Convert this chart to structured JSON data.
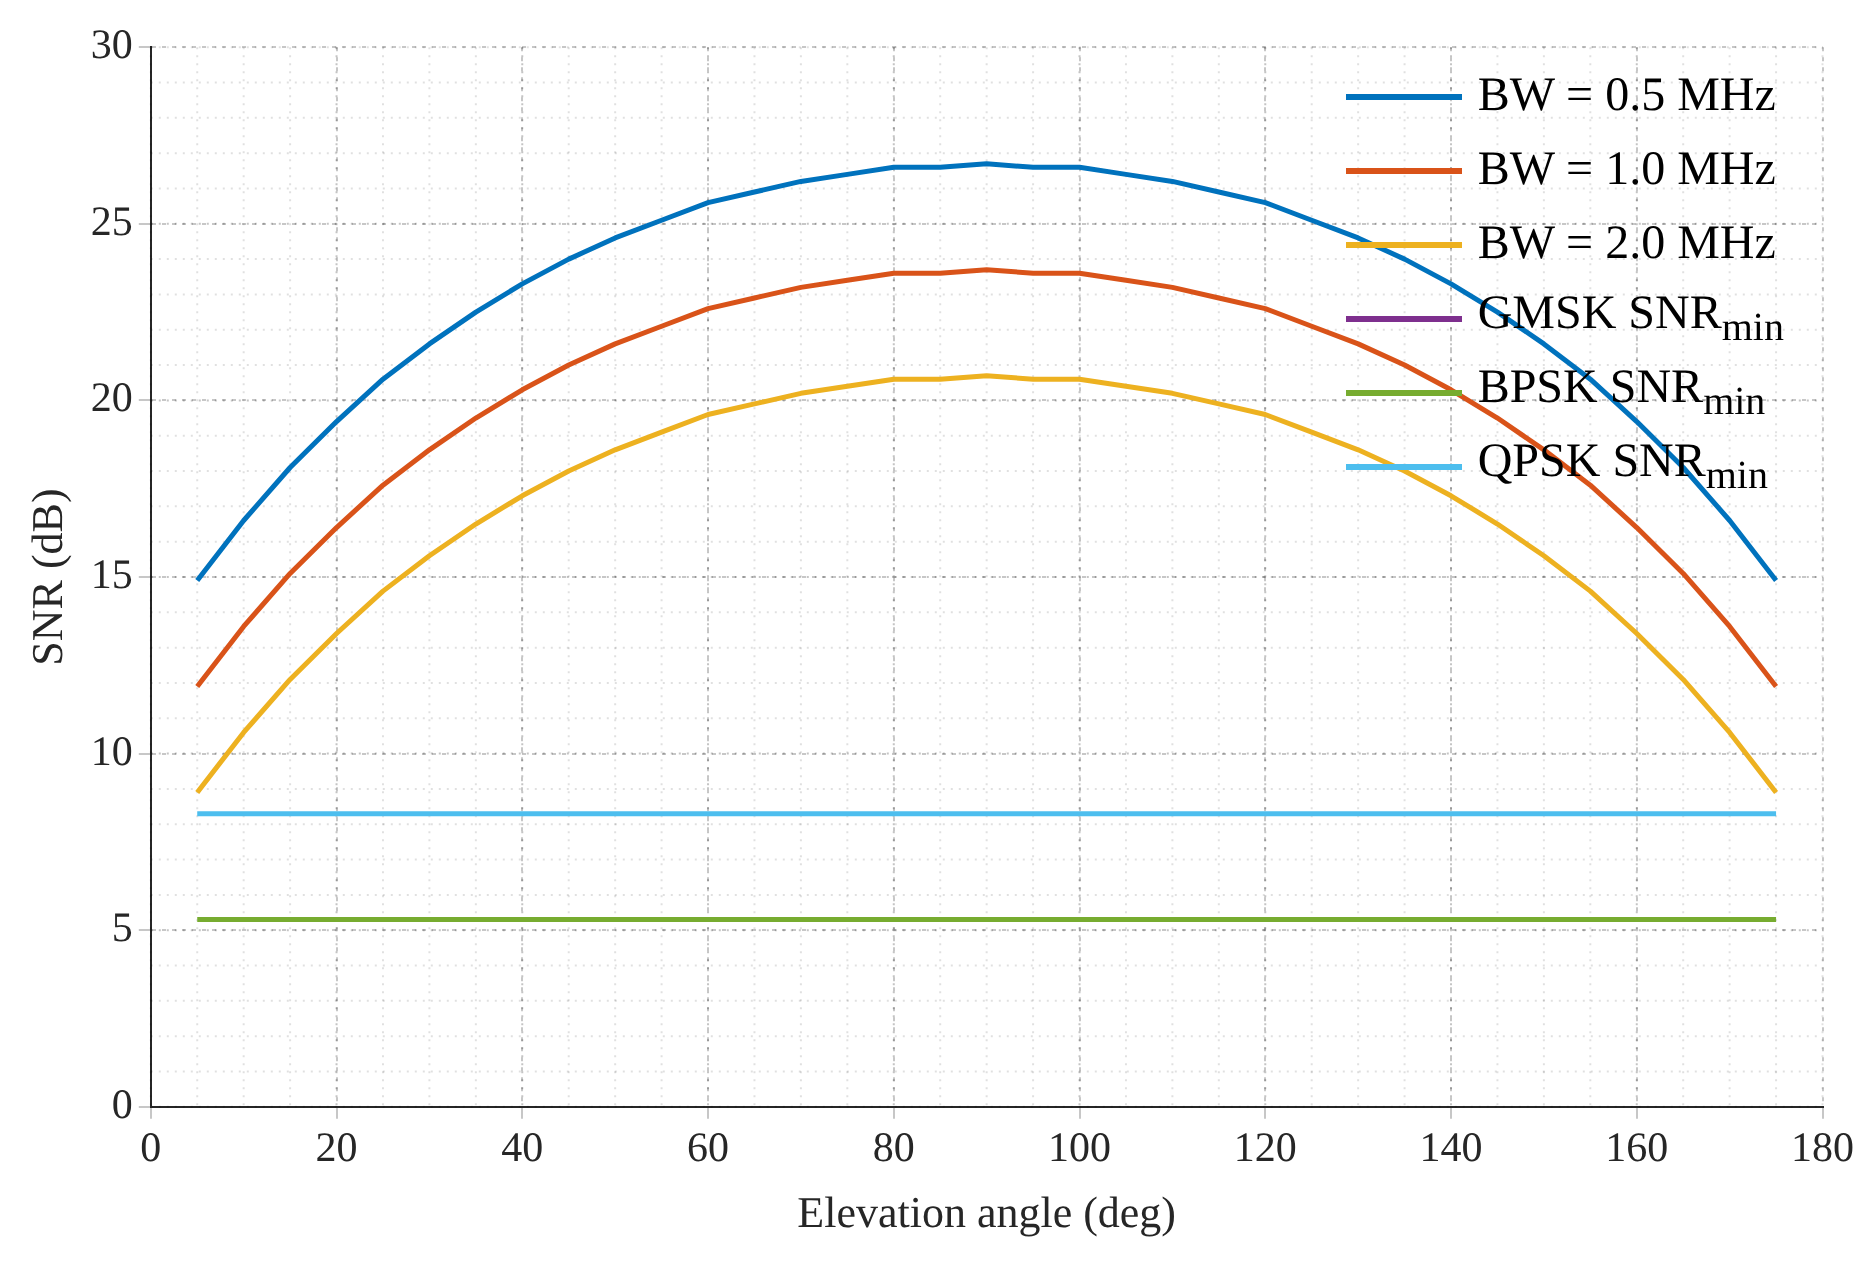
{
  "chart_data": {
    "type": "line",
    "xlabel": "Elevation angle (deg)",
    "ylabel": "SNR (dB)",
    "x": [
      5,
      10,
      15,
      20,
      25,
      30,
      35,
      40,
      45,
      50,
      55,
      60,
      65,
      70,
      75,
      80,
      85,
      90,
      95,
      100,
      105,
      110,
      115,
      120,
      125,
      130,
      135,
      140,
      145,
      150,
      155,
      160,
      165,
      170,
      175
    ],
    "series": [
      {
        "name": "BW = 0.5 MHz",
        "color": "#0072bd",
        "values": [
          14.9,
          16.6,
          18.1,
          19.4,
          20.6,
          21.6,
          22.5,
          23.3,
          24.0,
          24.6,
          25.1,
          25.6,
          25.9,
          26.2,
          26.4,
          26.6,
          26.6,
          26.7,
          26.6,
          26.6,
          26.4,
          26.2,
          25.9,
          25.6,
          25.1,
          24.6,
          24.0,
          23.3,
          22.5,
          21.6,
          20.6,
          19.4,
          18.1,
          16.6,
          14.9
        ]
      },
      {
        "name": "BW = 1.0 MHz",
        "color": "#d95319",
        "values": [
          11.9,
          13.6,
          15.1,
          16.4,
          17.6,
          18.6,
          19.5,
          20.3,
          21.0,
          21.6,
          22.1,
          22.6,
          22.9,
          23.2,
          23.4,
          23.6,
          23.6,
          23.7,
          23.6,
          23.6,
          23.4,
          23.2,
          22.9,
          22.6,
          22.1,
          21.6,
          21.0,
          20.3,
          19.5,
          18.6,
          17.6,
          16.4,
          15.1,
          13.6,
          11.9
        ]
      },
      {
        "name": "BW = 2.0 MHz",
        "color": "#edb120",
        "values": [
          8.9,
          10.6,
          12.1,
          13.4,
          14.6,
          15.6,
          16.5,
          17.3,
          18.0,
          18.6,
          19.1,
          19.6,
          19.9,
          20.2,
          20.4,
          20.6,
          20.6,
          20.7,
          20.6,
          20.6,
          20.4,
          20.2,
          19.9,
          19.6,
          19.1,
          18.6,
          18.0,
          17.3,
          16.5,
          15.6,
          14.6,
          13.4,
          12.1,
          10.6,
          8.9
        ]
      },
      {
        "name": "GMSK SNR$_{min}$",
        "color": "#7e2f8e",
        "values": [
          null,
          null,
          null,
          null,
          null,
          null,
          null,
          null,
          null,
          null,
          null,
          null,
          null,
          null,
          null,
          null,
          null,
          null,
          null,
          null,
          null,
          null,
          null,
          null,
          null,
          null,
          null,
          null,
          null,
          null,
          null,
          null,
          null,
          null,
          null
        ]
      },
      {
        "name": "BPSK SNR$_{min}$",
        "color": "#77ac30",
        "values": [
          5.3,
          5.3,
          5.3,
          5.3,
          5.3,
          5.3,
          5.3,
          5.3,
          5.3,
          5.3,
          5.3,
          5.3,
          5.3,
          5.3,
          5.3,
          5.3,
          5.3,
          5.3,
          5.3,
          5.3,
          5.3,
          5.3,
          5.3,
          5.3,
          5.3,
          5.3,
          5.3,
          5.3,
          5.3,
          5.3,
          5.3,
          5.3,
          5.3,
          5.3,
          5.3
        ]
      },
      {
        "name": "QPSK SNR$_{min}$",
        "color": "#4dbeee",
        "values": [
          8.3,
          8.3,
          8.3,
          8.3,
          8.3,
          8.3,
          8.3,
          8.3,
          8.3,
          8.3,
          8.3,
          8.3,
          8.3,
          8.3,
          8.3,
          8.3,
          8.3,
          8.3,
          8.3,
          8.3,
          8.3,
          8.3,
          8.3,
          8.3,
          8.3,
          8.3,
          8.3,
          8.3,
          8.3,
          8.3,
          8.3,
          8.3,
          8.3,
          8.3,
          8.3
        ]
      }
    ],
    "xlim": [
      0,
      180
    ],
    "xticks": [
      0,
      20,
      40,
      60,
      80,
      100,
      120,
      140,
      160,
      180
    ],
    "ylim": [
      0,
      30
    ],
    "yticks": [
      0,
      5,
      10,
      15,
      20,
      25,
      30
    ],
    "grid": true,
    "legend": "top right",
    "marker": "none",
    "line_style": "solid"
  }
}
